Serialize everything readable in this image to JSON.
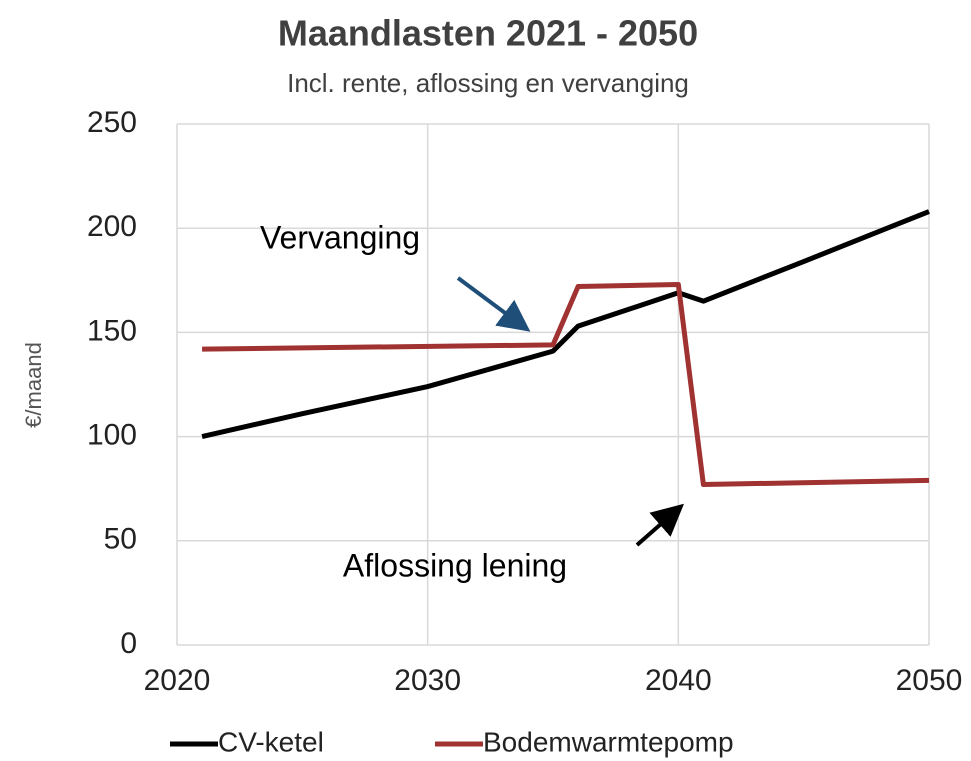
{
  "chart_data": {
    "type": "line",
    "title": "Maandlasten 2021 - 2050",
    "subtitle": "Incl.  rente, aflossing en vervanging",
    "y_label": "€/maand",
    "annotations": [
      "Vervanging",
      "Aflossing lening"
    ],
    "xlim": [
      2020,
      2050
    ],
    "xticks": [
      2020,
      2030,
      2040,
      2050
    ],
    "ylim": [
      0,
      250
    ],
    "yticks": [
      0,
      50,
      100,
      150,
      200,
      250
    ],
    "grid": true,
    "legend": "bottom",
    "series": [
      {
        "name": "CV-ketel",
        "color": "#000000",
        "x": [
          2021,
          2025,
          2030,
          2035,
          2036,
          2040,
          2041,
          2045,
          2050
        ],
        "values": [
          100,
          111,
          124,
          141,
          153,
          169,
          165,
          184,
          208
        ]
      },
      {
        "name": "Bodemwarmtepomp",
        "color": "#a03232",
        "x": [
          2021,
          2035,
          2036,
          2040,
          2041,
          2050
        ],
        "values": [
          142,
          144,
          172,
          173,
          77,
          79
        ]
      }
    ]
  }
}
